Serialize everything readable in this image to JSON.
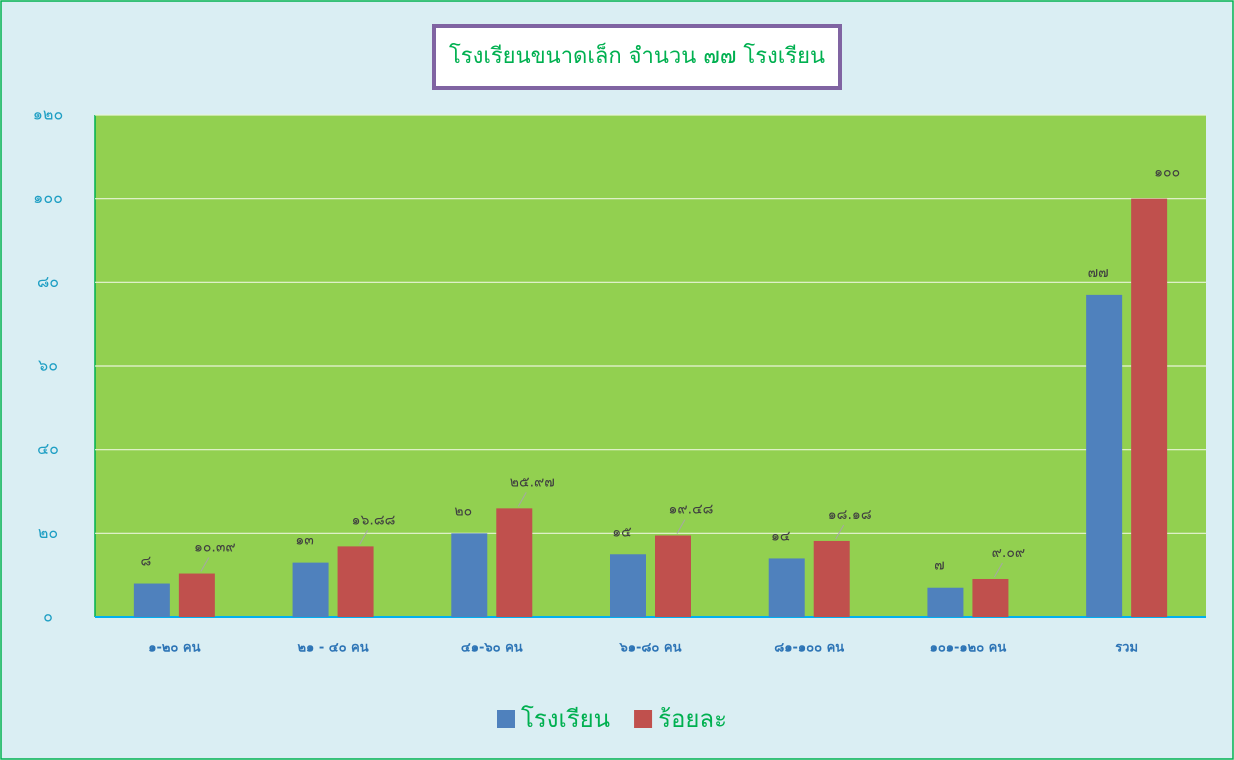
{
  "chart_data": {
    "type": "bar",
    "title": "โรงเรียนขนาดเล็ก จำนวน ๗๗ โรงเรียน",
    "categories": [
      "๑-๒๐ คน",
      "๒๑ - ๔๐ คน",
      "๔๑-๖๐ คน",
      "๖๑-๘๐ คน",
      "๘๑-๑๐๐ คน",
      "๑๐๑-๑๒๐ คน",
      "รวม"
    ],
    "series": [
      {
        "name": "โรงเรียน",
        "color": "#4f81bd",
        "values": [
          8,
          13,
          20,
          15,
          14,
          7,
          77
        ],
        "value_labels": [
          "๘",
          "๑๓",
          "๒๐",
          "๑๕",
          "๑๔",
          "๗",
          "๗๗"
        ]
      },
      {
        "name": "ร้อยละ",
        "color": "#c0504d",
        "values": [
          10.39,
          16.88,
          25.97,
          19.48,
          18.18,
          9.09,
          100
        ],
        "value_labels": [
          "๑๐.๓๙",
          "๑๖.๘๘",
          "๒๕.๙๗",
          "๑๙.๔๘",
          "๑๘.๑๘",
          "๙.๐๙",
          "๑๐๐"
        ]
      }
    ],
    "ylim": [
      0,
      120
    ],
    "yticks": [
      {
        "value": 0,
        "label": "๐"
      },
      {
        "value": 20,
        "label": "๒๐"
      },
      {
        "value": 40,
        "label": "๔๐"
      },
      {
        "value": 60,
        "label": "๖๐"
      },
      {
        "value": 80,
        "label": "๘๐"
      },
      {
        "value": 100,
        "label": "๑๐๐"
      },
      {
        "value": 120,
        "label": "๑๒๐"
      }
    ],
    "grid": true,
    "legend": "bottom"
  }
}
